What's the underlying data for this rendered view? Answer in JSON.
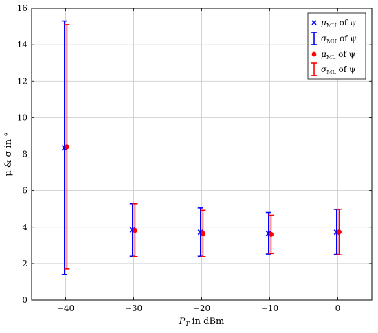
{
  "chart_data": {
    "type": "scatter",
    "xlabel": "P_T in dBm",
    "ylabel": "μ & σ in °",
    "xlim": [
      -45,
      5
    ],
    "ylim": [
      0,
      16
    ],
    "x_ticks": [
      -40,
      -30,
      -20,
      -10,
      0
    ],
    "x_tick_labels": [
      "−40",
      "−30",
      "−20",
      "−10",
      "0"
    ],
    "y_ticks": [
      0,
      2,
      4,
      6,
      8,
      10,
      12,
      14,
      16
    ],
    "y_tick_labels": [
      "0",
      "2",
      "4",
      "6",
      "8",
      "10",
      "12",
      "14",
      "16"
    ],
    "grid": true,
    "legend_position": "top-right",
    "series": [
      {
        "name": "μMU of ψ",
        "legend_parts": [
          "μ",
          "MU",
          " of ψ"
        ],
        "color": "#0000ff",
        "marker": "x",
        "x": [
          -40,
          -30,
          -20,
          -10,
          0
        ],
        "mean": [
          8.35,
          3.85,
          3.72,
          3.65,
          3.72
        ],
        "err_low": [
          1.4,
          2.4,
          2.4,
          2.52,
          2.5
        ],
        "err_high": [
          15.3,
          5.28,
          5.05,
          4.8,
          4.97
        ],
        "errorbar_name": "σMU of ψ",
        "errorbar_legend_parts": [
          "σ",
          "MU",
          " of ψ"
        ]
      },
      {
        "name": "μML of ψ",
        "legend_parts": [
          "μ",
          "ML",
          " of ψ"
        ],
        "color": "#ff0000",
        "marker": "circle",
        "x": [
          -40,
          -30,
          -20,
          -10,
          0
        ],
        "mean": [
          8.4,
          3.82,
          3.65,
          3.6,
          3.73
        ],
        "err_low": [
          1.7,
          2.38,
          2.38,
          2.55,
          2.48
        ],
        "err_high": [
          15.1,
          5.28,
          4.92,
          4.65,
          4.98
        ],
        "errorbar_name": "σML of ψ",
        "errorbar_legend_parts": [
          "σ",
          "ML",
          " of ψ"
        ]
      }
    ]
  }
}
